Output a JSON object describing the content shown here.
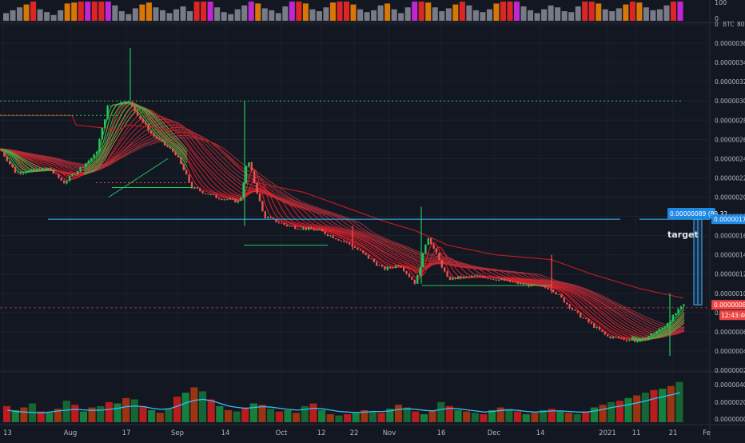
{
  "chart_data": [
    {
      "type": "bar",
      "panel": "indicator",
      "yaxis_ticks": [
        "100",
        "0"
      ],
      "ylim": [
        0,
        100
      ],
      "series": [
        {
          "values": [
            40,
            55,
            70,
            85,
            100,
            60,
            45,
            30,
            55,
            90,
            95,
            100,
            100,
            100,
            100,
            100,
            80,
            50,
            35,
            65,
            85,
            95,
            70,
            55,
            40,
            60,
            75,
            50,
            100,
            100,
            100,
            70,
            45,
            35,
            60,
            80,
            100,
            90,
            65,
            55,
            40,
            75,
            100,
            100,
            90,
            60,
            50,
            70,
            95,
            100,
            100,
            85,
            60,
            45,
            55,
            80,
            90,
            60,
            40,
            70,
            100,
            100,
            95,
            70,
            50,
            65,
            85,
            100,
            80,
            55,
            45,
            60,
            90,
            100,
            100,
            100,
            75,
            55,
            40,
            60,
            80,
            70,
            50,
            45,
            75,
            100,
            100,
            90,
            60,
            50,
            65,
            85,
            100,
            95,
            70,
            55,
            60,
            80,
            100,
            100
          ]
        }
      ]
    },
    {
      "type": "candlestick",
      "panel": "price",
      "currency_label": "BTC",
      "yaxis_ticks": [
        "0.00000380",
        "0.00000360",
        "0.00000340",
        "0.00000320",
        "0.00000300",
        "0.00000280",
        "0.00000260",
        "0.00000240",
        "0.00000220",
        "0.00000200",
        "0.00000180",
        "0.00000160",
        "0.00000140",
        "0.00000120",
        "0.00000100",
        "0.00000080",
        "0.00000060",
        "0.00000040",
        "0.00000020"
      ],
      "ylim": [
        2e-07,
        3.8e-06
      ],
      "xaxis_ticks": [
        "13",
        "Aug",
        "17",
        "Sep",
        "14",
        "Oct",
        "12",
        "22",
        "Nov",
        "16",
        "Dec",
        "14",
        "2021",
        "11",
        "21",
        "Fe"
      ],
      "price_path_anchors": [
        [
          0,
          2.5e-06
        ],
        [
          20,
          2.25e-06
        ],
        [
          60,
          2.3e-06
        ],
        [
          80,
          2.15e-06
        ],
        [
          120,
          2.45e-06
        ],
        [
          135,
          2.95e-06
        ],
        [
          160,
          3e-06
        ],
        [
          190,
          2.65e-06
        ],
        [
          220,
          2.45e-06
        ],
        [
          240,
          2.1e-06
        ],
        [
          270,
          2e-06
        ],
        [
          300,
          1.95e-06
        ],
        [
          310,
          2.4e-06
        ],
        [
          330,
          1.8e-06
        ],
        [
          360,
          1.7e-06
        ],
        [
          400,
          1.65e-06
        ],
        [
          440,
          1.5e-06
        ],
        [
          480,
          1.25e-06
        ],
        [
          500,
          1.3e-06
        ],
        [
          520,
          1.1e-06
        ],
        [
          535,
          1.6e-06
        ],
        [
          560,
          1.15e-06
        ],
        [
          600,
          1.18e-06
        ],
        [
          650,
          1.1e-06
        ],
        [
          690,
          1.05e-06
        ],
        [
          720,
          8e-07
        ],
        [
          760,
          5.5e-07
        ],
        [
          800,
          5e-07
        ],
        [
          830,
          6.5e-07
        ],
        [
          855,
          8.8e-07
        ]
      ],
      "horizontal_lines": [
        {
          "type": "dotted",
          "color": "#22c55e",
          "value": 3e-06
        },
        {
          "type": "solid",
          "color": "#38bdf8",
          "value": 1.77e-06
        },
        {
          "type": "dashed",
          "color": "#ef4444",
          "value": 8.5e-07
        }
      ],
      "annotations": [
        {
          "text": "target"
        },
        {
          "text": "0.00000089 (99.32"
        },
        {
          "text": "0.00000177"
        },
        {
          "text": "0.00000088"
        },
        {
          "text": "12:43:46"
        }
      ]
    },
    {
      "type": "bar",
      "panel": "volume",
      "yaxis_ticks": [
        "0.00000400",
        "0.00000200",
        "0.00000000"
      ],
      "ylim": [
        0,
        4e-06
      ],
      "series": [
        {
          "values": [
            0.6,
            0.45,
            0.55,
            0.7,
            0.4,
            0.35,
            0.5,
            0.8,
            0.65,
            0.4,
            0.55,
            0.6,
            0.75,
            0.7,
            0.9,
            0.85,
            0.6,
            0.45,
            0.35,
            0.5,
            0.95,
            1.1,
            1.3,
            1.15,
            0.85,
            0.6,
            0.45,
            0.4,
            0.55,
            0.7,
            0.65,
            0.5,
            0.4,
            0.45,
            0.35,
            0.6,
            0.7,
            0.45,
            0.3,
            0.25,
            0.3,
            0.35,
            0.45,
            0.4,
            0.35,
            0.5,
            0.65,
            0.55,
            0.4,
            0.3,
            0.45,
            0.75,
            0.6,
            0.45,
            0.4,
            0.35,
            0.3,
            0.45,
            0.55,
            0.5,
            0.4,
            0.3,
            0.35,
            0.45,
            0.5,
            0.4,
            0.35,
            0.3,
            0.4,
            0.55,
            0.65,
            0.75,
            0.8,
            0.9,
            1.0,
            1.1,
            1.2,
            1.25,
            1.35,
            1.5
          ]
        },
        {
          "values": [
            0.45,
            0.4,
            0.38,
            0.36,
            0.35,
            0.38,
            0.42,
            0.45,
            0.48,
            0.46,
            0.44,
            0.45,
            0.48,
            0.52,
            0.58,
            0.6,
            0.58,
            0.52,
            0.48,
            0.5,
            0.6,
            0.72,
            0.82,
            0.85,
            0.8,
            0.7,
            0.6,
            0.55,
            0.52,
            0.55,
            0.58,
            0.56,
            0.52,
            0.48,
            0.45,
            0.48,
            0.52,
            0.5,
            0.45,
            0.4,
            0.38,
            0.36,
            0.38,
            0.4,
            0.4,
            0.42,
            0.48,
            0.5,
            0.48,
            0.44,
            0.42,
            0.48,
            0.52,
            0.5,
            0.46,
            0.42,
            0.38,
            0.4,
            0.44,
            0.46,
            0.44,
            0.4,
            0.38,
            0.4,
            0.42,
            0.42,
            0.4,
            0.38,
            0.38,
            0.42,
            0.48,
            0.55,
            0.6,
            0.66,
            0.72,
            0.8,
            0.88,
            0.95,
            1.02,
            1.1
          ]
        }
      ]
    }
  ]
}
